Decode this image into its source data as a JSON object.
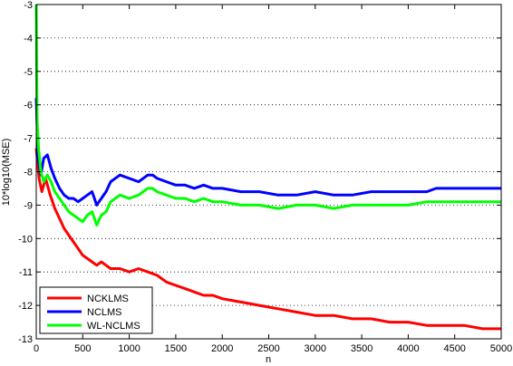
{
  "chart_data": {
    "type": "line",
    "title": "",
    "xlabel": "n",
    "ylabel": "10*log10(MSE)",
    "xlim": [
      0,
      5000
    ],
    "ylim": [
      -13,
      -3
    ],
    "xticks": [
      0,
      500,
      1000,
      1500,
      2000,
      2500,
      3000,
      3500,
      4000,
      4500,
      5000
    ],
    "yticks": [
      -13,
      -12,
      -11,
      -10,
      -9,
      -8,
      -7,
      -6,
      -5,
      -4,
      -3
    ],
    "grid": "horizontal dotted",
    "legend_position": "bottom-left",
    "series": [
      {
        "name": "NCKLMS",
        "color": "#ff0000",
        "x": [
          0,
          30,
          60,
          100,
          150,
          200,
          250,
          300,
          350,
          400,
          450,
          500,
          550,
          600,
          650,
          700,
          750,
          800,
          900,
          1000,
          1100,
          1200,
          1300,
          1400,
          1500,
          1600,
          1700,
          1800,
          1900,
          2000,
          2200,
          2400,
          2600,
          2800,
          3000,
          3200,
          3400,
          3600,
          3800,
          4000,
          4200,
          4400,
          4600,
          4800,
          5000
        ],
        "y": [
          -7.3,
          -8.2,
          -8.6,
          -8.2,
          -8.7,
          -9.1,
          -9.4,
          -9.7,
          -9.9,
          -10.1,
          -10.3,
          -10.5,
          -10.6,
          -10.7,
          -10.8,
          -10.7,
          -10.8,
          -10.9,
          -10.9,
          -11.0,
          -10.9,
          -11.0,
          -11.1,
          -11.3,
          -11.4,
          -11.5,
          -11.6,
          -11.7,
          -11.7,
          -11.8,
          -11.9,
          -12.0,
          -12.1,
          -12.2,
          -12.3,
          -12.3,
          -12.4,
          -12.4,
          -12.5,
          -12.5,
          -12.6,
          -12.6,
          -12.6,
          -12.7,
          -12.7
        ]
      },
      {
        "name": "NCLMS",
        "color": "#0000ff",
        "x": [
          0,
          20,
          50,
          80,
          120,
          160,
          200,
          250,
          300,
          350,
          400,
          450,
          500,
          550,
          600,
          650,
          700,
          750,
          800,
          900,
          1000,
          1100,
          1200,
          1250,
          1300,
          1400,
          1500,
          1600,
          1700,
          1800,
          1900,
          2000,
          2200,
          2400,
          2600,
          2800,
          3000,
          3200,
          3400,
          3600,
          3800,
          4000,
          4200,
          4300,
          4400,
          4600,
          4800,
          5000
        ],
        "y": [
          -5.8,
          -7.6,
          -8.1,
          -7.6,
          -7.5,
          -7.9,
          -8.2,
          -8.5,
          -8.7,
          -8.8,
          -8.8,
          -8.9,
          -8.8,
          -8.7,
          -8.6,
          -9.0,
          -8.8,
          -8.6,
          -8.3,
          -8.1,
          -8.2,
          -8.3,
          -8.1,
          -8.1,
          -8.2,
          -8.3,
          -8.4,
          -8.4,
          -8.5,
          -8.4,
          -8.5,
          -8.5,
          -8.6,
          -8.6,
          -8.7,
          -8.7,
          -8.6,
          -8.7,
          -8.7,
          -8.6,
          -8.6,
          -8.6,
          -8.6,
          -8.5,
          -8.5,
          -8.5,
          -8.5,
          -8.5
        ]
      },
      {
        "name": "WL-NCLMS",
        "color": "#00ff00",
        "x": [
          0,
          10,
          25,
          50,
          80,
          120,
          160,
          200,
          250,
          300,
          350,
          400,
          450,
          500,
          550,
          600,
          650,
          700,
          750,
          800,
          900,
          1000,
          1100,
          1200,
          1250,
          1300,
          1400,
          1500,
          1600,
          1700,
          1800,
          1900,
          2000,
          2200,
          2400,
          2600,
          2800,
          3000,
          3200,
          3400,
          3600,
          3800,
          4000,
          4200,
          4400,
          4600,
          4800,
          5000
        ],
        "y": [
          -3.0,
          -6.5,
          -7.3,
          -8.0,
          -8.3,
          -8.1,
          -8.3,
          -8.6,
          -8.8,
          -9.0,
          -9.2,
          -9.3,
          -9.4,
          -9.5,
          -9.3,
          -9.2,
          -9.6,
          -9.3,
          -9.2,
          -8.9,
          -8.7,
          -8.8,
          -8.7,
          -8.5,
          -8.5,
          -8.6,
          -8.7,
          -8.8,
          -8.8,
          -8.9,
          -8.8,
          -8.9,
          -8.9,
          -9.0,
          -9.0,
          -9.1,
          -9.0,
          -9.0,
          -9.1,
          -9.0,
          -9.0,
          -9.0,
          -9.0,
          -8.9,
          -8.9,
          -8.9,
          -8.9,
          -8.9
        ]
      }
    ]
  }
}
